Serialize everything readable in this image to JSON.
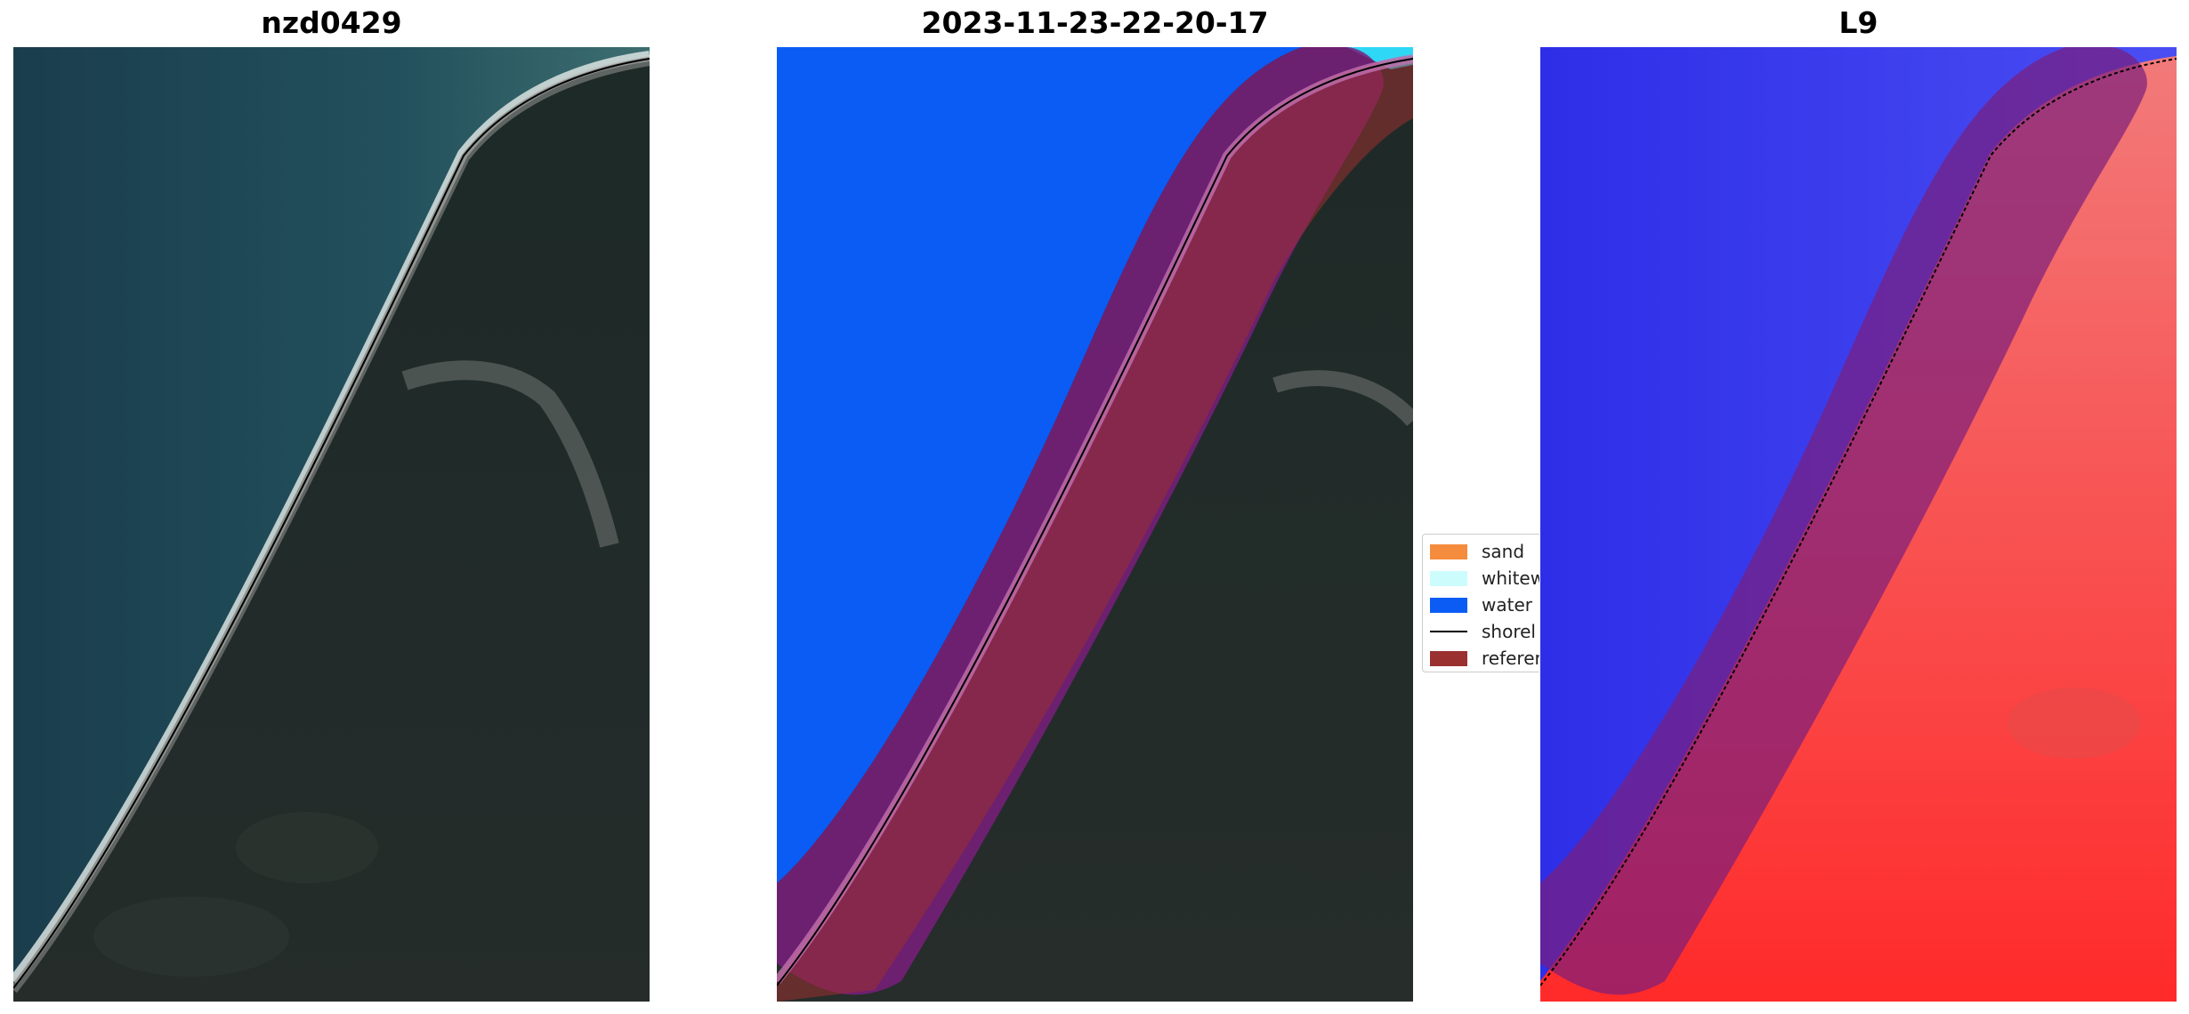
{
  "panels": [
    {
      "title": "nzd0429"
    },
    {
      "title": "2023-11-23-22-20-17"
    },
    {
      "title": "L9"
    }
  ],
  "legend": {
    "items": [
      {
        "label": "sand",
        "color": "#f58b3c"
      },
      {
        "label": "whitew",
        "color": "#ccfcfc"
      },
      {
        "label": "water",
        "color": "#0a5cf5"
      },
      {
        "label": "shorel",
        "color": "#000000"
      },
      {
        "label": "referer",
        "color": "#9a3030"
      }
    ]
  },
  "colors": {
    "sea_dark": "#163645",
    "sea_mid": "#2b5a66",
    "land": "#1e2826",
    "water_class": "#0a5cf5",
    "buffer": "#7a1e7c",
    "reference": "#9a3030",
    "index_water": "#2a2ae6",
    "index_land": "#f04a4a"
  }
}
